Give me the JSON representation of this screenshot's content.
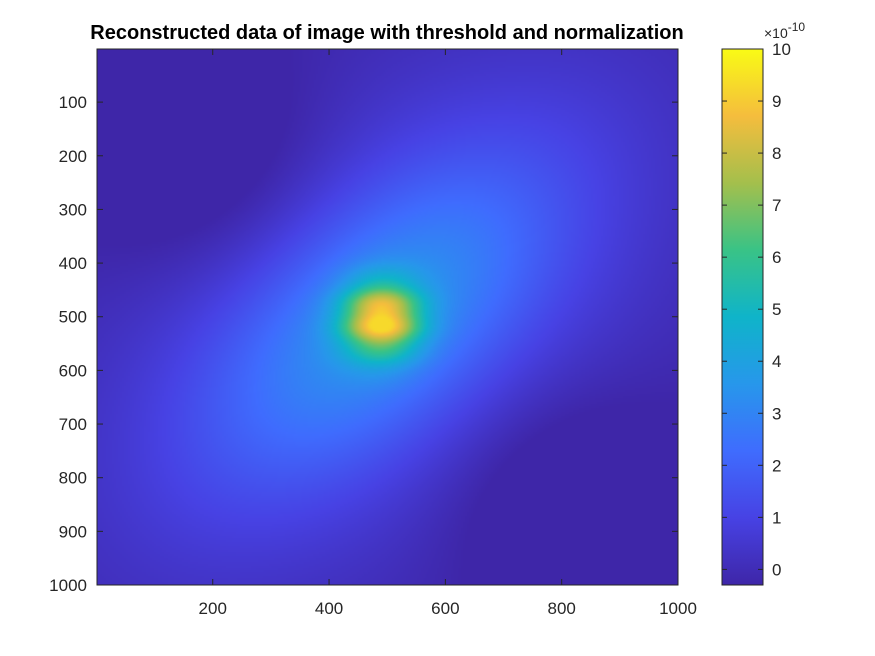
{
  "chart_data": {
    "type": "heatmap",
    "title": "Reconstructed data of image with threshold and normalization",
    "xlabel": "",
    "ylabel": "",
    "x_ticks": [
      "200",
      "400",
      "600",
      "800",
      "1000"
    ],
    "x_tick_values": [
      200,
      400,
      600,
      800,
      1000
    ],
    "y_ticks": [
      "100",
      "200",
      "300",
      "400",
      "500",
      "600",
      "700",
      "800",
      "900",
      "1000"
    ],
    "y_tick_values": [
      100,
      200,
      300,
      400,
      500,
      600,
      700,
      800,
      900,
      1000
    ],
    "xlim": [
      1,
      1000
    ],
    "ylim": [
      1,
      1000
    ],
    "y_direction": "reverse",
    "colormap": "parula",
    "colorbar": {
      "ticks": [
        "0",
        "1",
        "2",
        "3",
        "4",
        "5",
        "6",
        "7",
        "8",
        "9",
        "10"
      ],
      "tick_values": [
        0,
        1,
        2,
        3,
        4,
        5,
        6,
        7,
        8,
        9,
        10
      ],
      "range": [
        -0.3,
        10
      ],
      "exponent_base": "×10",
      "exponent": "-10"
    },
    "peak": {
      "x": 490,
      "y": 505,
      "value": 9.3
    },
    "features": [
      {
        "description": "dark trough",
        "x": 180,
        "y": 210,
        "value": -0.25
      },
      {
        "description": "dark trough",
        "x": 800,
        "y": 830,
        "value": -0.25
      },
      {
        "description": "diagonal ridge",
        "direction": "bottom-left to top-right",
        "value": 1.0
      }
    ]
  }
}
